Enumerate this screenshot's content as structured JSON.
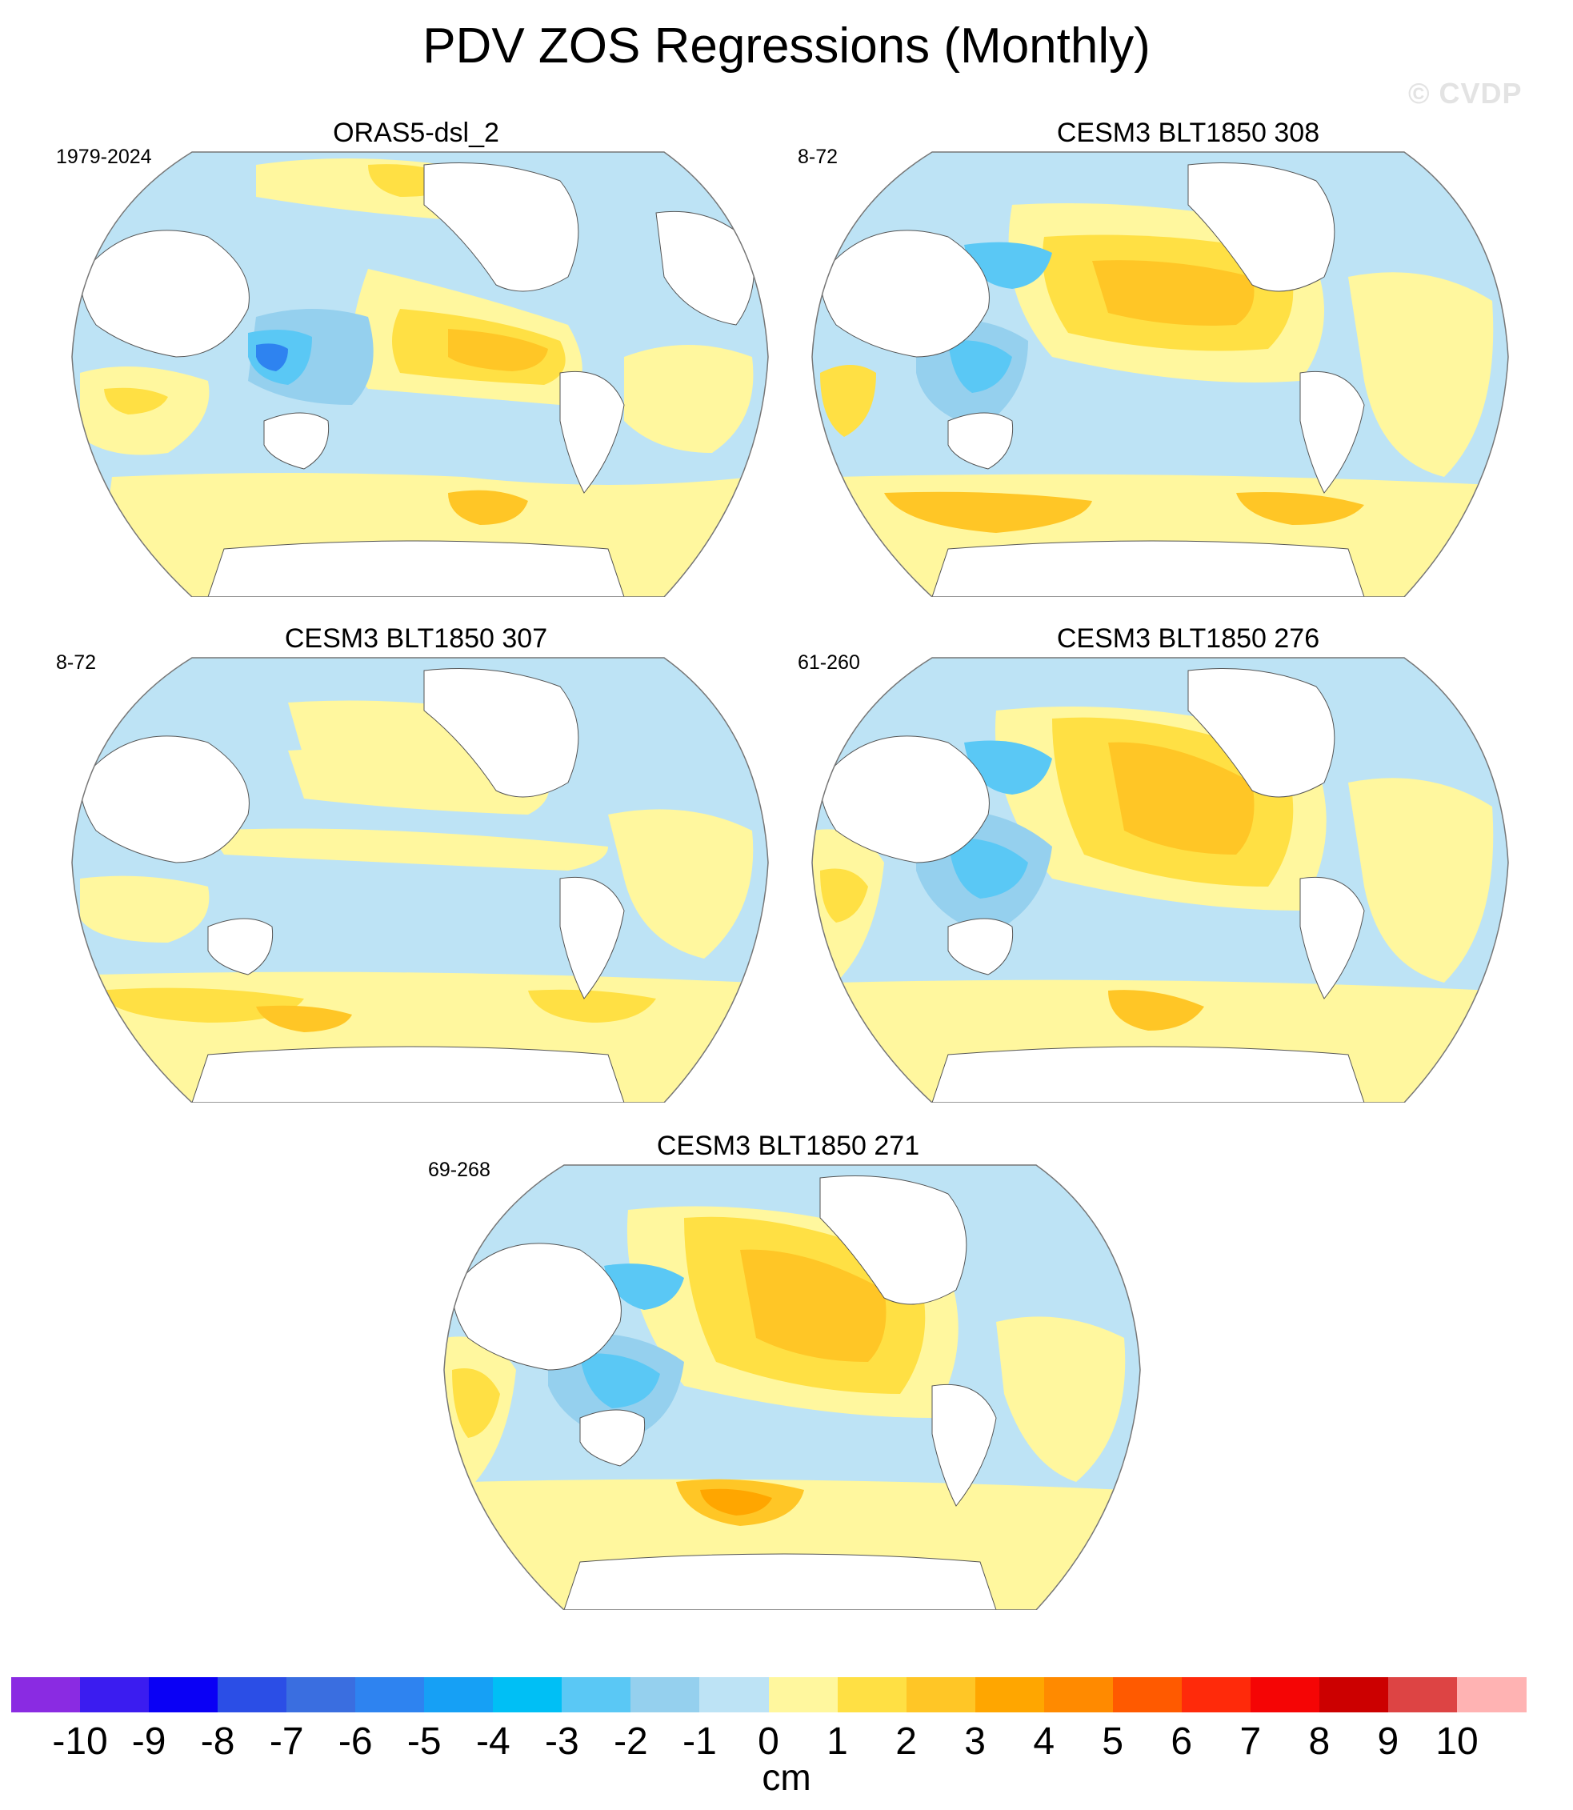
{
  "page": {
    "title": "PDV ZOS Regressions (Monthly)",
    "watermark": "© CVDP",
    "units": "cm"
  },
  "panels": [
    {
      "title": "ORAS5-dsl_2",
      "period": "1979-2024"
    },
    {
      "title": "CESM3 BLT1850 308",
      "period": "8-72"
    },
    {
      "title": "CESM3 BLT1850 307",
      "period": "8-72"
    },
    {
      "title": "CESM3 BLT1850 276",
      "period": "61-260"
    },
    {
      "title": "CESM3 BLT1850 271",
      "period": "69-268"
    }
  ],
  "chart_data": {
    "type": "heatmap",
    "title": "PDV ZOS Regressions (Monthly)",
    "variable": "ZOS",
    "units": "cm",
    "projection": "global map",
    "colorbar": {
      "levels": [
        -10,
        -9,
        -8,
        -7,
        -6,
        -5,
        -4,
        -3,
        -2,
        -1,
        0,
        1,
        2,
        3,
        4,
        5,
        6,
        7,
        8,
        9,
        10
      ],
      "labels": [
        "-10",
        "-9",
        "-8",
        "-7",
        "-6",
        "-5",
        "-4",
        "-3",
        "-2",
        "-1",
        "0",
        "1",
        "2",
        "3",
        "4",
        "5",
        "6",
        "7",
        "8",
        "9",
        "10"
      ],
      "colors": [
        "#8a2be2",
        "#3b1cf0",
        "#0a00f5",
        "#2b4ee6",
        "#3a6ee0",
        "#2e83f0",
        "#16a0f5",
        "#00bff5",
        "#5ac8f5",
        "#95d0ee",
        "#bde3f5",
        "#fff79e",
        "#ffe044",
        "#ffc626",
        "#ffa600",
        "#ff8a00",
        "#ff5a00",
        "#ff2a0a",
        "#f50505",
        "#cc0000",
        "#dd4444",
        "#ffb3b3"
      ]
    },
    "panels": [
      {
        "name": "ORAS5-dsl_2",
        "period": "1979-2024"
      },
      {
        "name": "CESM3 BLT1850 308",
        "period": "8-72"
      },
      {
        "name": "CESM3 BLT1850 307",
        "period": "8-72"
      },
      {
        "name": "CESM3 BLT1850 276",
        "period": "61-260"
      },
      {
        "name": "CESM3 BLT1850 271",
        "period": "69-268"
      }
    ]
  }
}
